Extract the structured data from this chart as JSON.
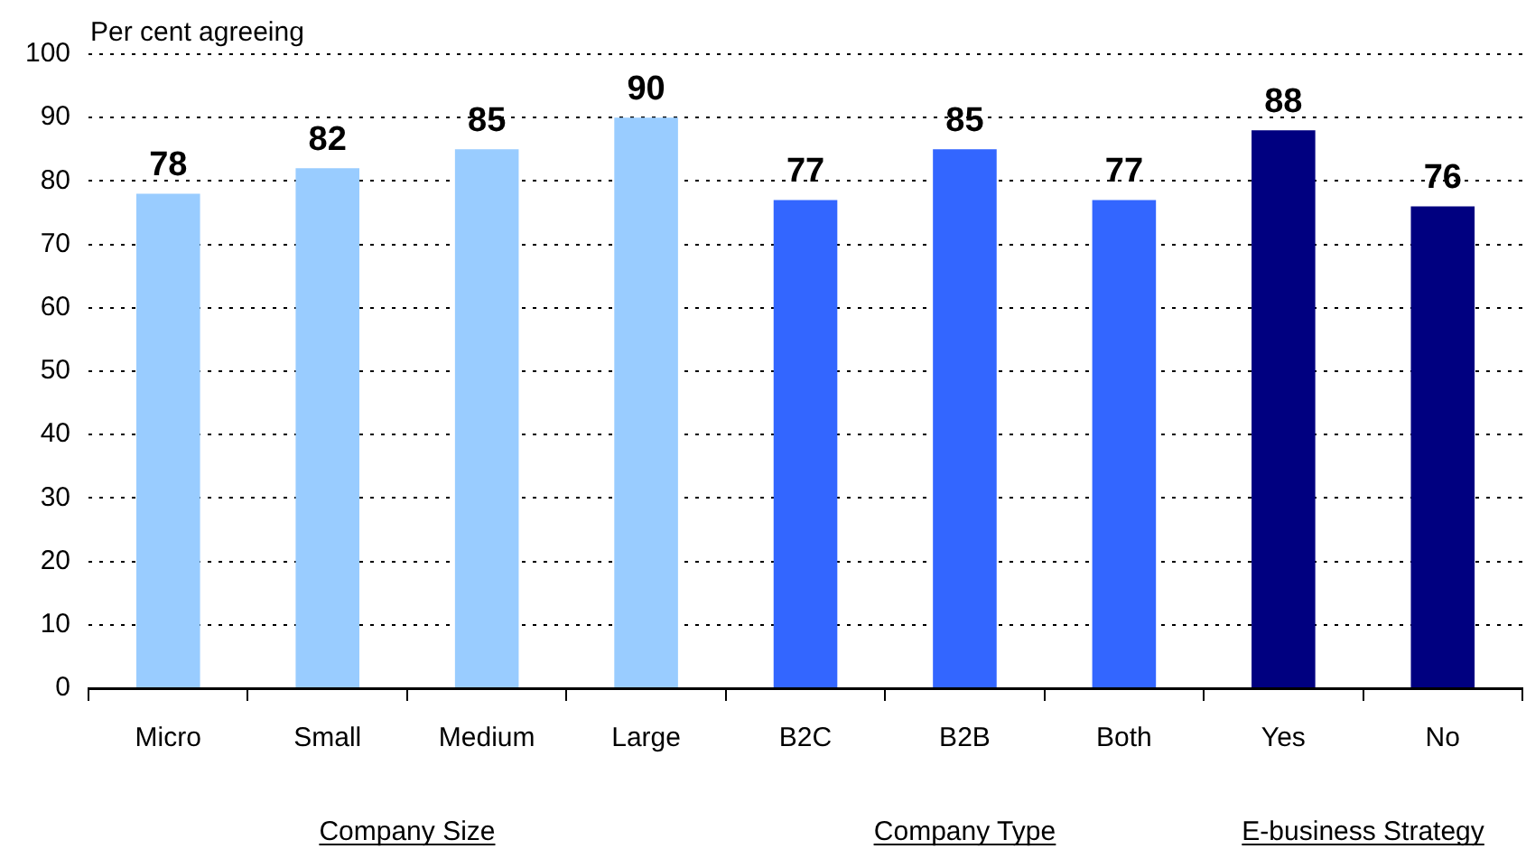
{
  "chart_data": {
    "type": "bar",
    "ylabel": "Per cent agreeing",
    "categories": [
      "Micro",
      "Small",
      "Medium",
      "Large",
      "B2C",
      "B2B",
      "Both",
      "Yes",
      "No"
    ],
    "values": [
      78,
      82,
      85,
      90,
      77,
      85,
      77,
      88,
      76
    ],
    "colors": [
      "#99ccff",
      "#99ccff",
      "#99ccff",
      "#99ccff",
      "#3366ff",
      "#3366ff",
      "#3366ff",
      "#000080",
      "#000080"
    ],
    "ylim": [
      0,
      100
    ],
    "yticks": [
      0,
      10,
      20,
      30,
      40,
      50,
      60,
      70,
      80,
      90,
      100
    ],
    "grid": "y",
    "data_labels": true,
    "legend": false,
    "annotations": [
      "Company Size",
      "Company Type",
      "E-business Strategy"
    ]
  }
}
